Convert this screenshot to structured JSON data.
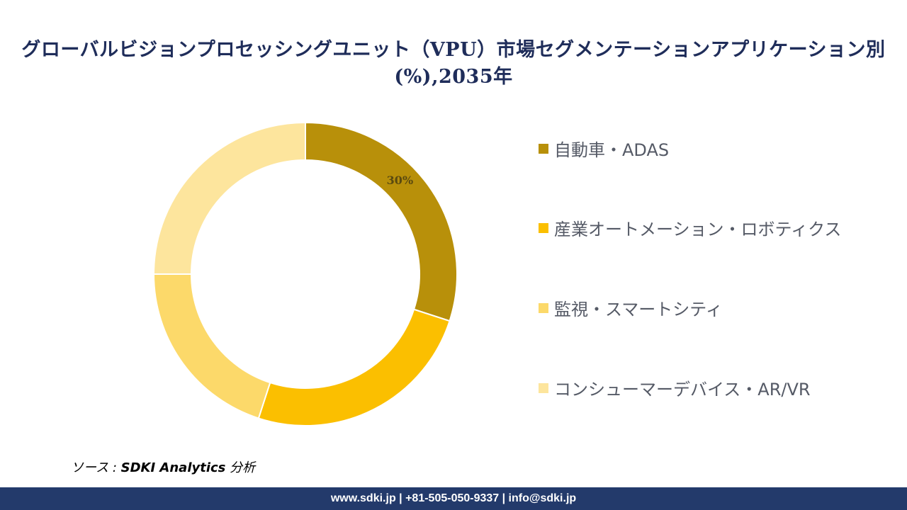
{
  "title": "グローバルビジョンプロセッシングユニット（VPU）市場セグメンテーションアプリケーション別(%),2035年",
  "chart_data": {
    "type": "pie",
    "donut": true,
    "categories": [
      "自動車・ADAS",
      "産業オートメーション・ロボティクス",
      "監視・スマートシティ",
      "コンシューマーデバイス・AR/VR"
    ],
    "values": [
      30,
      25,
      20,
      25
    ],
    "colors": [
      "#b8900a",
      "#fbbf00",
      "#fcd96a",
      "#fde59d"
    ],
    "data_labels": [
      "30%",
      "",
      "",
      ""
    ],
    "legend_position": "right"
  },
  "source": {
    "prefix": "ソース : ",
    "name": "SDKI Analytics",
    "suffix": " 分析"
  },
  "footer": {
    "text": "www.sdki.jp | +81-505-050-9337 | info@sdki.jp"
  }
}
